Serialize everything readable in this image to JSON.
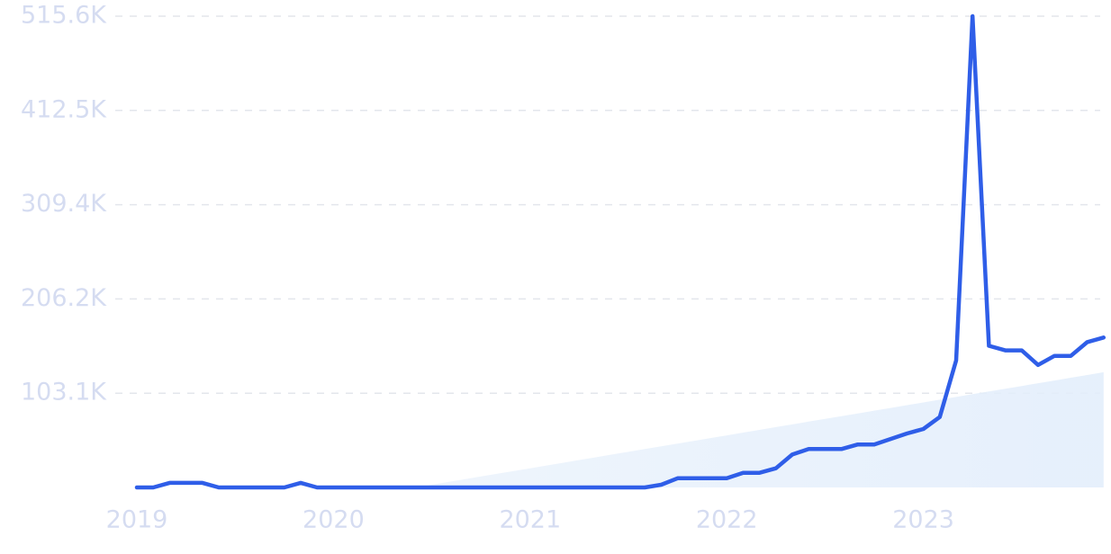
{
  "chart_data": {
    "type": "line",
    "categories": [
      "2019",
      null,
      null,
      null,
      null,
      null,
      null,
      null,
      null,
      null,
      null,
      null,
      "2020",
      null,
      null,
      null,
      null,
      null,
      null,
      null,
      null,
      null,
      null,
      null,
      "2021",
      null,
      null,
      null,
      null,
      null,
      null,
      null,
      null,
      null,
      null,
      null,
      "2022",
      null,
      null,
      null,
      null,
      null,
      null,
      null,
      null,
      null,
      null,
      null,
      "2023",
      null,
      null,
      null,
      null,
      null,
      null,
      null,
      null,
      null,
      null,
      null
    ],
    "series": [
      {
        "color": "#2f5ee8",
        "values": [
          0,
          0,
          5000,
          5000,
          5000,
          0,
          0,
          0,
          0,
          0,
          5000,
          0,
          0,
          0,
          0,
          0,
          0,
          0,
          0,
          0,
          0,
          0,
          0,
          0,
          0,
          0,
          0,
          0,
          0,
          0,
          0,
          0,
          3000,
          10000,
          10000,
          10000,
          10000,
          16000,
          16000,
          21000,
          36000,
          42000,
          42000,
          42000,
          47000,
          47000,
          53000,
          59000,
          64000,
          77000,
          139000,
          515600,
          155000,
          150000,
          150000,
          134000,
          144000,
          144000,
          159000,
          164000
        ]
      },
      {
        "color": "#e9f1fc",
        "fill": true,
        "values": [
          null,
          null,
          null,
          null,
          null,
          null,
          null,
          null,
          null,
          null,
          null,
          null,
          null,
          null,
          null,
          null,
          null,
          0,
          3000,
          6000,
          9000,
          12000,
          15000,
          18000,
          21000,
          24000,
          27000,
          30000,
          33000,
          36000,
          39000,
          42000,
          45000,
          48000,
          51000,
          54000,
          57000,
          60000,
          63000,
          66000,
          69000,
          72000,
          75000,
          78000,
          81000,
          84000,
          87000,
          90000,
          93000,
          96000,
          99000,
          102000,
          105000,
          108000,
          111000,
          114000,
          117000,
          120000,
          123000,
          126000
        ]
      }
    ],
    "ylim": [
      0,
      515600
    ],
    "yticks": [
      {
        "value": 103120,
        "label": "103.1K"
      },
      {
        "value": 206240,
        "label": "206.2K"
      },
      {
        "value": 309360,
        "label": "309.4K"
      },
      {
        "value": 412480,
        "label": "412.5K"
      },
      {
        "value": 515600,
        "label": "515.6K"
      }
    ],
    "grid": true
  }
}
